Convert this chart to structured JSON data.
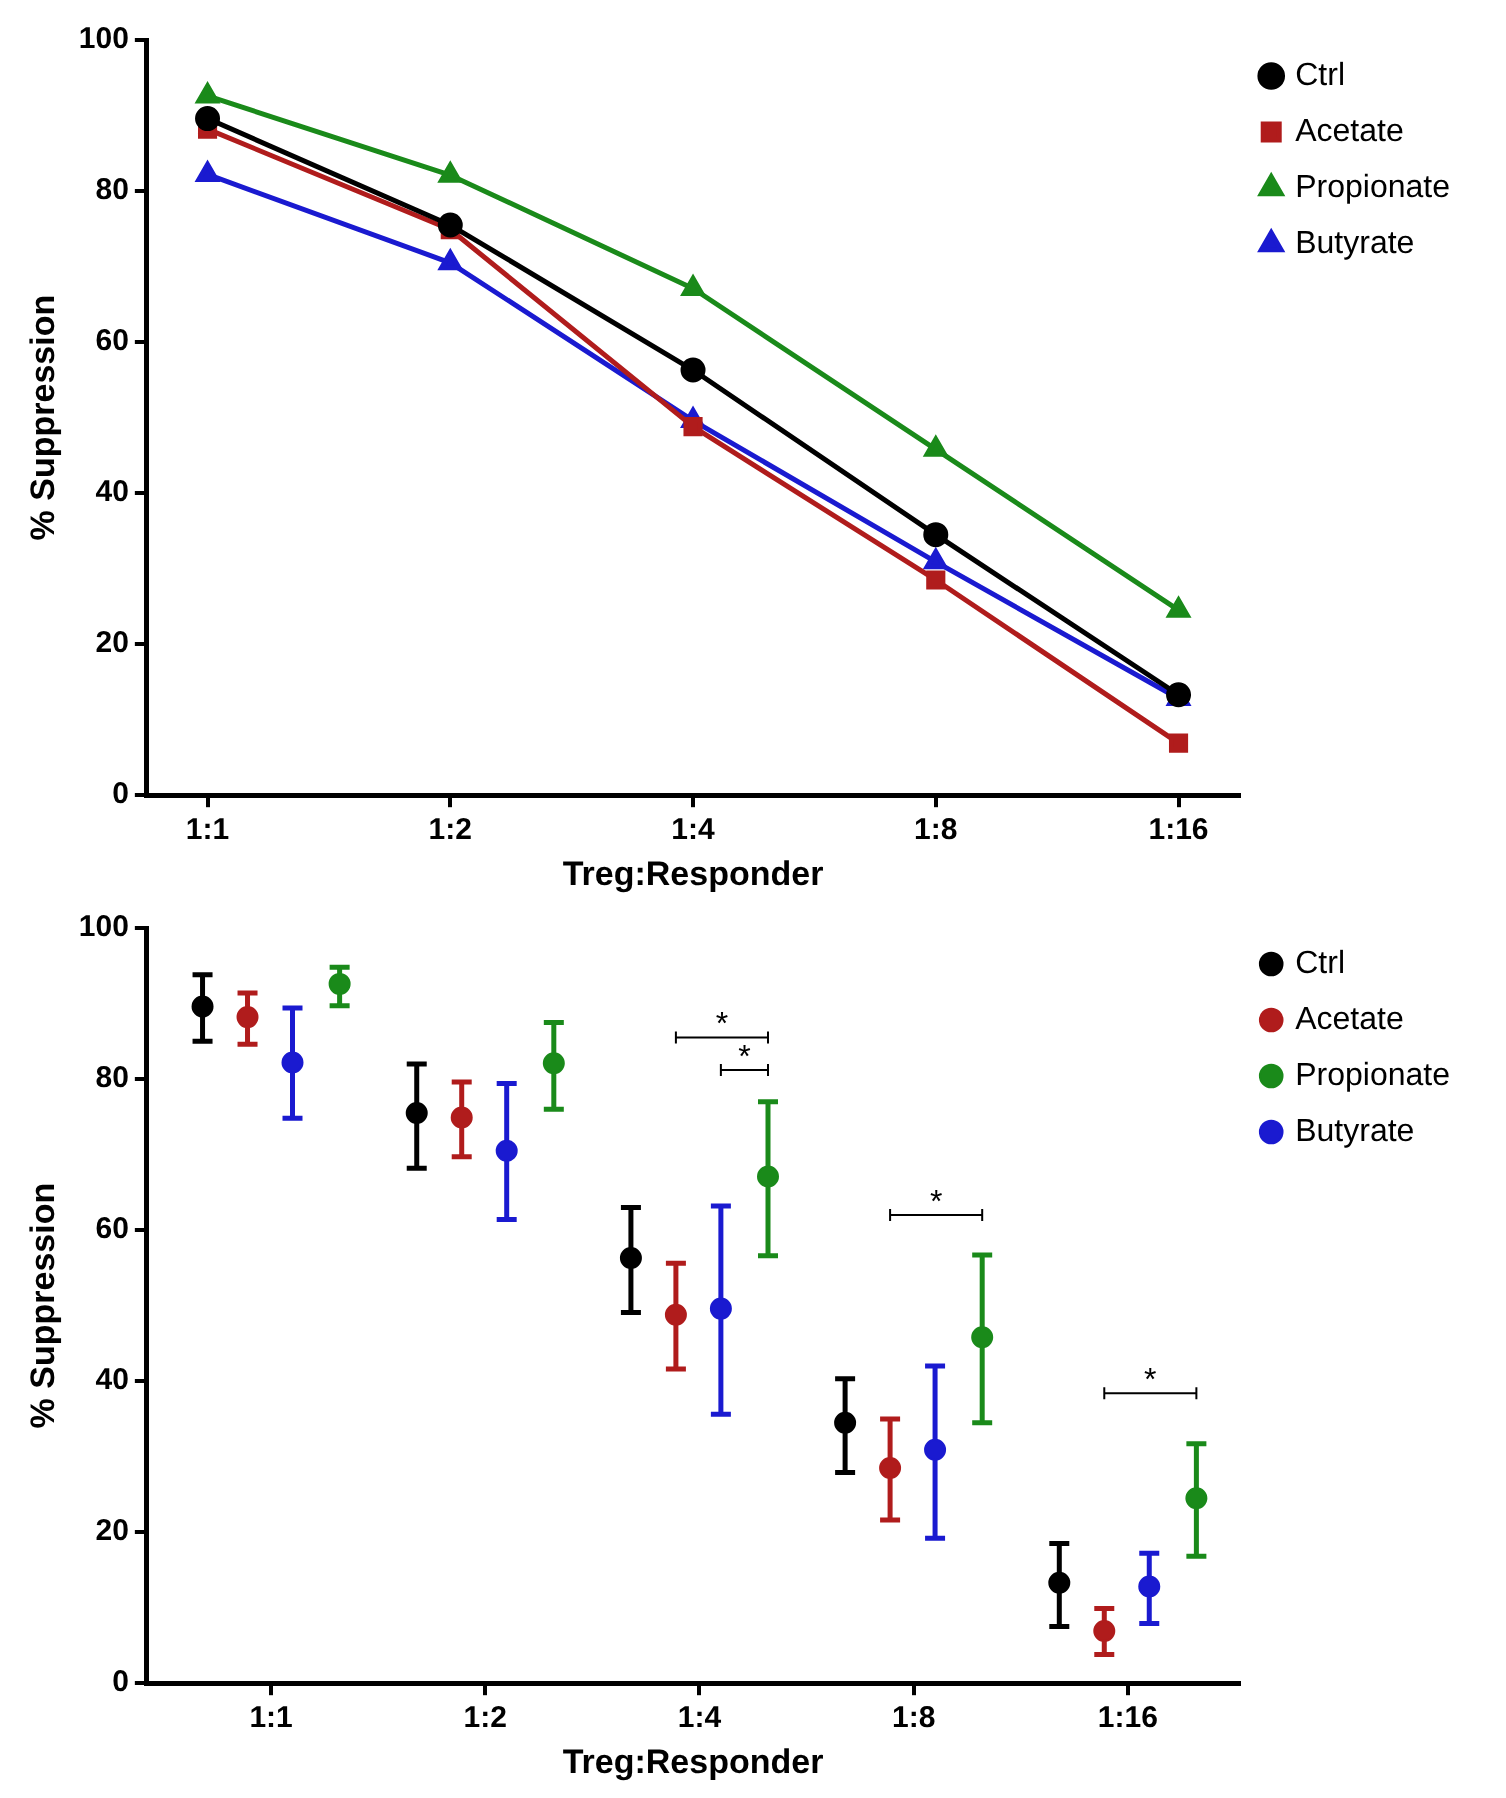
{
  "chart_data": [
    {
      "type": "line",
      "xlabel": "Treg:Responder",
      "ylabel": "% Suppression",
      "categories": [
        "1:1",
        "1:2",
        "1:4",
        "1:8",
        "1:16"
      ],
      "ylim": [
        0,
        100
      ],
      "yticks": [
        0,
        20,
        40,
        60,
        80,
        100
      ],
      "grid": false,
      "legend": "top right",
      "line_style": "solid",
      "series": [
        {
          "name": "Ctrl",
          "color": "#000000",
          "marker": "circle",
          "values": [
            89.6,
            75.5,
            56.3,
            34.5,
            13.3
          ]
        },
        {
          "name": "Acetate",
          "color": "#b01c1c",
          "marker": "square",
          "values": [
            88.2,
            74.9,
            48.8,
            28.5,
            6.9
          ]
        },
        {
          "name": "Propionate",
          "color": "#1a8a1a",
          "marker": "triangle",
          "values": [
            92.6,
            82.1,
            67.1,
            45.8,
            24.5
          ]
        },
        {
          "name": "Butyrate",
          "color": "#1a1ad0",
          "marker": "triangle",
          "values": [
            82.2,
            70.5,
            49.6,
            30.9,
            12.8
          ]
        }
      ]
    },
    {
      "type": "scatter",
      "xlabel": "Treg:Responder",
      "ylabel": "% Suppression",
      "categories": [
        "1:1",
        "1:2",
        "1:4",
        "1:8",
        "1:16"
      ],
      "ylim": [
        0,
        100
      ],
      "yticks": [
        0,
        20,
        40,
        60,
        80,
        100
      ],
      "grid": false,
      "legend": "top right",
      "marker": "circle",
      "series": [
        {
          "name": "Ctrl",
          "color": "#000000",
          "values": [
            89.6,
            75.5,
            56.3,
            34.5,
            13.3
          ],
          "errors": [
            [
              85.0,
              93.8
            ],
            [
              68.2,
              82.0
            ],
            [
              49.1,
              63.0
            ],
            [
              27.9,
              40.3
            ],
            [
              7.5,
              18.5
            ]
          ]
        },
        {
          "name": "Acetate",
          "color": "#b01c1c",
          "values": [
            88.2,
            74.9,
            48.8,
            28.5,
            6.9
          ],
          "errors": [
            [
              84.6,
              91.4
            ],
            [
              69.7,
              79.6
            ],
            [
              41.6,
              55.6
            ],
            [
              21.6,
              35.0
            ],
            [
              3.8,
              9.9
            ]
          ]
        },
        {
          "name": "Propionate",
          "color": "#1a8a1a",
          "values": [
            92.6,
            82.1,
            67.1,
            45.8,
            24.5
          ],
          "errors": [
            [
              89.7,
              94.8
            ],
            [
              76.0,
              87.5
            ],
            [
              56.6,
              77.0
            ],
            [
              34.5,
              56.7
            ],
            [
              16.8,
              31.7
            ]
          ]
        },
        {
          "name": "Butyrate",
          "color": "#1a1ad0",
          "values": [
            82.2,
            70.5,
            49.6,
            30.9,
            12.8
          ],
          "errors": [
            [
              74.8,
              89.4
            ],
            [
              61.4,
              79.4
            ],
            [
              35.6,
              63.2
            ],
            [
              19.2,
              42.0
            ],
            [
              7.9,
              17.2
            ]
          ]
        }
      ],
      "annotations": [
        "*",
        "*",
        "*",
        "*"
      ]
    }
  ]
}
